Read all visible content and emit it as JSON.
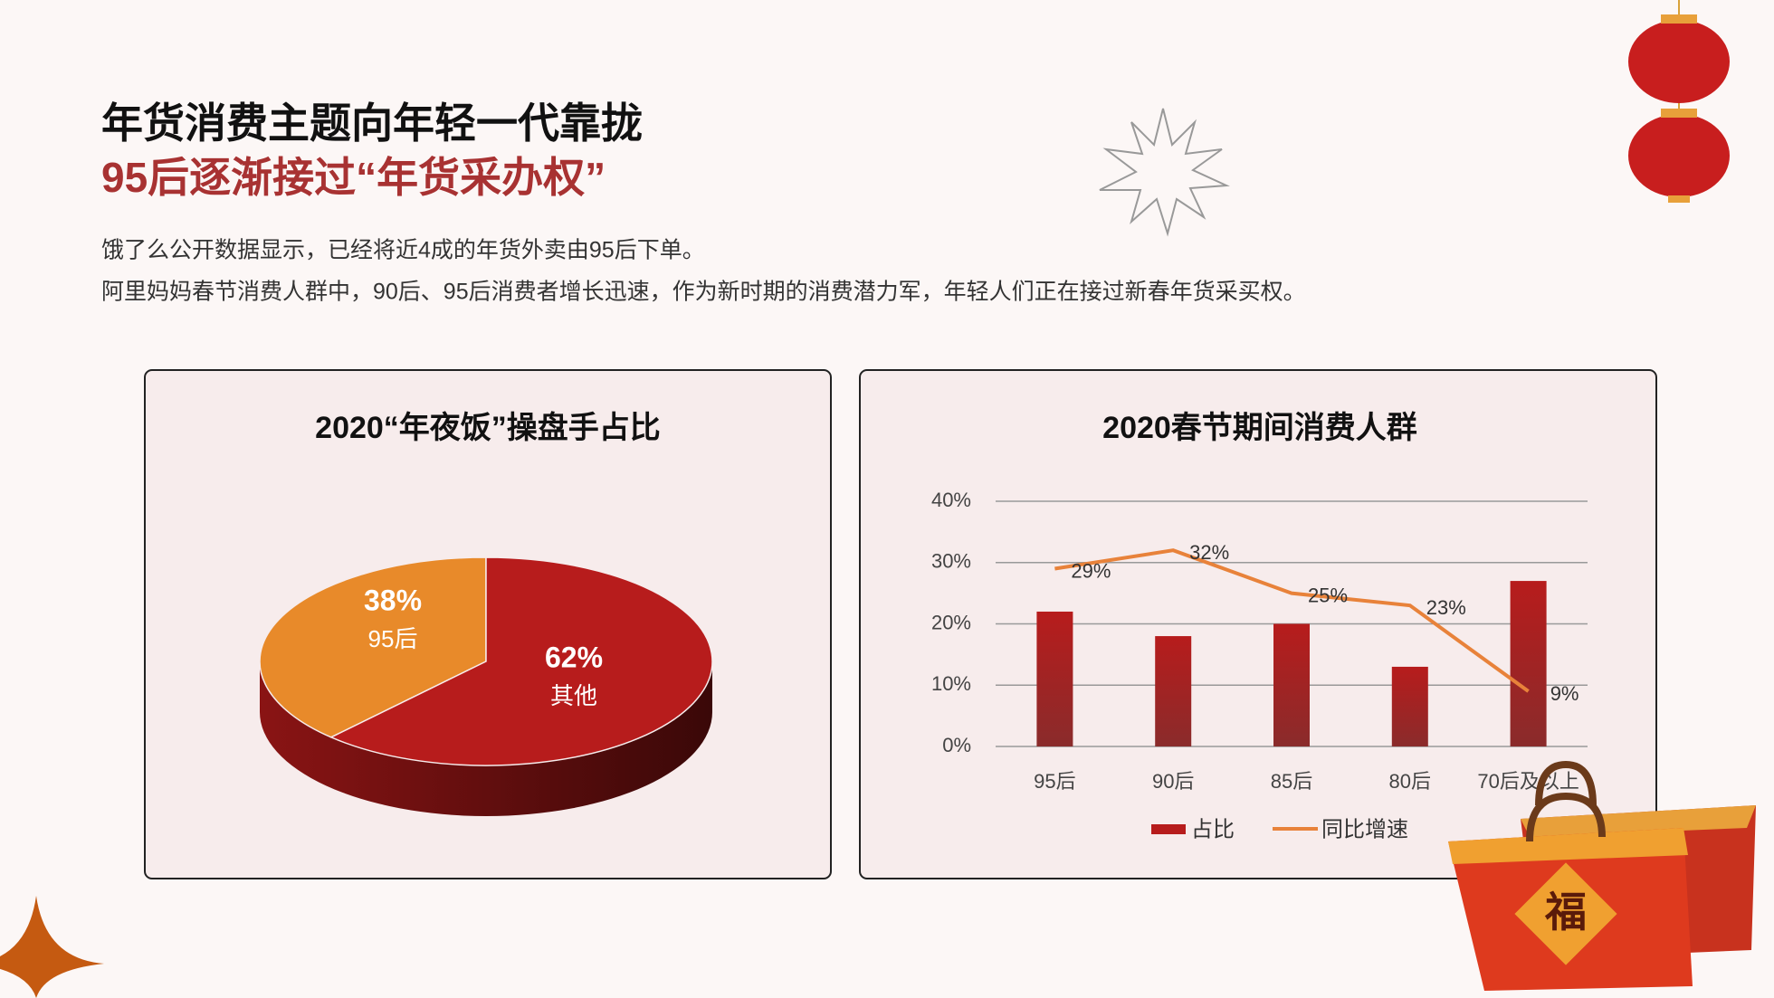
{
  "header": {
    "title": "年货消费主题向年轻一代靠拢",
    "subtitle": "95后逐渐接过“年货采办权”",
    "paragraphs": [
      "饿了么公开数据显示，已经将近4成的年货外卖由95后下单。",
      "阿里妈妈春节消费人群中，90后、95后消费者增长迅速，作为新时期的消费潜力军，年轻人们正在接过新春年货采买权。"
    ]
  },
  "chart_data": [
    {
      "type": "pie",
      "title": "2020“年夜饭”操盘手占比",
      "categories": [
        "95后",
        "其他"
      ],
      "values": [
        38,
        62
      ],
      "value_labels": [
        "38%",
        "62%"
      ],
      "colors": [
        "#e88a2a",
        "#b71c1c"
      ]
    },
    {
      "type": "bar",
      "title": "2020春节期间消费人群",
      "categories": [
        "95后",
        "90后",
        "85后",
        "80后",
        "70后及以上"
      ],
      "series": [
        {
          "name": "占比",
          "type": "bar",
          "color": "#b71c1c",
          "values": [
            22,
            18,
            20,
            13,
            27
          ]
        },
        {
          "name": "同比增速",
          "type": "line",
          "color": "#e8823a",
          "values": [
            29,
            32,
            25,
            23,
            9
          ],
          "value_labels": [
            "29%",
            "32%",
            "25%",
            "23%",
            "9%"
          ]
        }
      ],
      "ylim": [
        0,
        40
      ],
      "yticks": [
        {
          "value": 0,
          "label": "0%"
        },
        {
          "value": 10,
          "label": "10%"
        },
        {
          "value": 20,
          "label": "20%"
        },
        {
          "value": 30,
          "label": "30%"
        },
        {
          "value": 40,
          "label": "40%"
        }
      ],
      "grid": true,
      "legend": "bottom"
    }
  ]
}
